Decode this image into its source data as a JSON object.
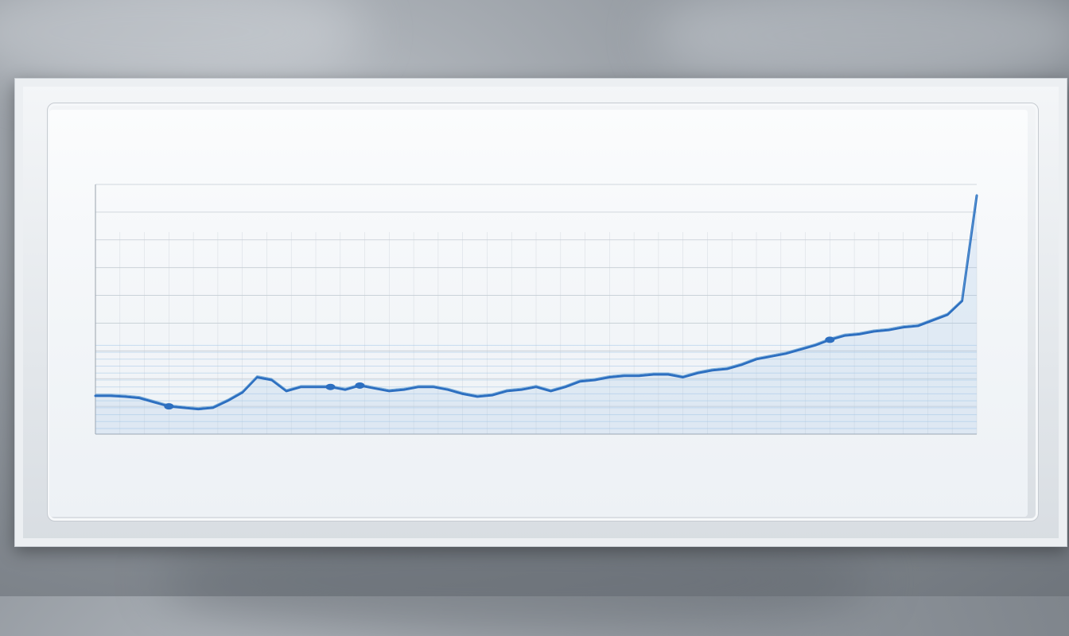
{
  "chart_data": {
    "type": "line",
    "title": "",
    "subtitle": "",
    "xlabel": "",
    "ylabel": "",
    "ylim": [
      0,
      9
    ],
    "grid": true,
    "legend": "none",
    "x": [
      0,
      1,
      2,
      3,
      4,
      5,
      6,
      7,
      8,
      9,
      10,
      11,
      12,
      13,
      14,
      15,
      16,
      17,
      18,
      19,
      20,
      21,
      22,
      23,
      24,
      25,
      26,
      27,
      28,
      29,
      30,
      31,
      32,
      33,
      34,
      35,
      36,
      37,
      38,
      39,
      40,
      41,
      42,
      43,
      44,
      45,
      46,
      47,
      48,
      49,
      50,
      51,
      52,
      53,
      54,
      55,
      56,
      57,
      58,
      59,
      60
    ],
    "series": [
      {
        "name": "",
        "values": [
          1.38,
          1.38,
          1.35,
          1.3,
          1.15,
          1.0,
          0.95,
          0.9,
          0.95,
          1.2,
          1.5,
          2.05,
          1.95,
          1.55,
          1.7,
          1.7,
          1.7,
          1.6,
          1.75,
          1.65,
          1.55,
          1.6,
          1.7,
          1.7,
          1.6,
          1.45,
          1.35,
          1.4,
          1.55,
          1.6,
          1.7,
          1.55,
          1.7,
          1.9,
          1.95,
          2.05,
          2.1,
          2.1,
          2.15,
          2.15,
          2.05,
          2.2,
          2.3,
          2.35,
          2.5,
          2.7,
          2.8,
          2.9,
          3.05,
          3.2,
          3.4,
          3.55,
          3.6,
          3.7,
          3.75,
          3.85,
          3.9,
          4.1,
          4.3,
          4.8,
          8.6
        ]
      }
    ],
    "markers": [
      5,
      16,
      18,
      50
    ]
  },
  "style": {
    "line_color": "#2d6fc0",
    "accent_color": "#6aa5d6",
    "grid_color": "#c5ccd4",
    "fill_color": "#9ec3e6"
  }
}
